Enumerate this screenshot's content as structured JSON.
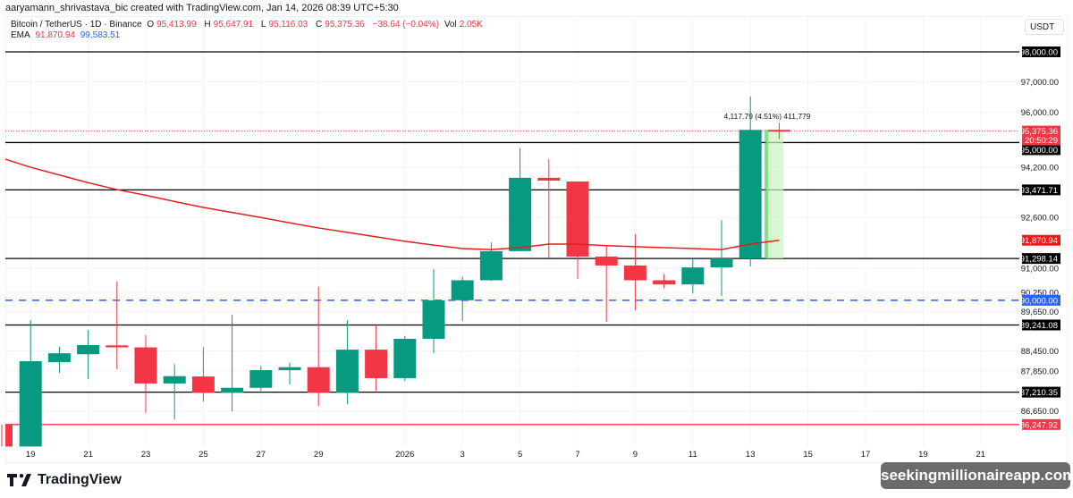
{
  "credit": "aaryamann_shrivastava_bic created with TradingView.com, Jan 14, 2026 08:39 UTC+5:30",
  "legend": {
    "symbol": "Bitcoin / TetherUS · 1D · Binance",
    "o_label": "O",
    "o": "95,413.99",
    "h_label": "H",
    "h": "95,647.91",
    "l_label": "L",
    "l": "95,116.03",
    "c_label": "C",
    "c": "95,375.36",
    "change": "−38.64 (−0.04%)",
    "vol_label": "Vol",
    "vol": "2.05K",
    "ema_label": "EMA",
    "ema1": "91,870.94",
    "ema2": "99,583.51"
  },
  "currency": "USDT",
  "colors": {
    "up": "#089981",
    "down": "#f23645",
    "ema": "#e0211f",
    "dashed": "#2962ff",
    "level": "#000000",
    "support_red": "#f23645",
    "range_fill": "#c8f5c0"
  },
  "chart_data": {
    "type": "candlestick",
    "scale": "log",
    "ylim": [
      85600,
      98400
    ],
    "y_ticks": [
      "97,000.00",
      "96,000.00",
      "94,200.00",
      "92,600.00",
      "91,000.00",
      "90,250.00",
      "89,650.00",
      "88,450.00",
      "87,850.00",
      "86,650.00"
    ],
    "x_ticks": [
      {
        "date": "Dec 19",
        "label": "19"
      },
      {
        "date": "Dec 21",
        "label": "21"
      },
      {
        "date": "Dec 23",
        "label": "23"
      },
      {
        "date": "Dec 25",
        "label": "25"
      },
      {
        "date": "Dec 27",
        "label": "27"
      },
      {
        "date": "Dec 29",
        "label": "29"
      },
      {
        "date": "Jan 1",
        "label": "2026"
      },
      {
        "date": "Jan 3",
        "label": "3"
      },
      {
        "date": "Jan 5",
        "label": "5"
      },
      {
        "date": "Jan 7",
        "label": "7"
      },
      {
        "date": "Jan 9",
        "label": "9"
      },
      {
        "date": "Jan 11",
        "label": "11"
      },
      {
        "date": "Jan 13",
        "label": "13"
      },
      {
        "date": "Jan 15",
        "label": "15"
      },
      {
        "date": "Jan 17",
        "label": "17"
      },
      {
        "date": "Jan 19",
        "label": "19"
      },
      {
        "date": "Jan 21",
        "label": "21"
      }
    ],
    "dates": [
      "Dec 18",
      "Dec 19",
      "Dec 20",
      "Dec 21",
      "Dec 22",
      "Dec 23",
      "Dec 24",
      "Dec 25",
      "Dec 26",
      "Dec 27",
      "Dec 28",
      "Dec 29",
      "Dec 30",
      "Dec 31",
      "Jan 1",
      "Jan 2",
      "Jan 3",
      "Jan 4",
      "Jan 5",
      "Jan 6",
      "Jan 7",
      "Jan 8",
      "Jan 9",
      "Jan 10",
      "Jan 11",
      "Jan 12",
      "Jan 13",
      "Jan 14",
      "Jan 15",
      "Jan 16",
      "Jan 17",
      "Jan 18",
      "Jan 19",
      "Jan 20",
      "Jan 21"
    ],
    "candles": [
      {
        "o": 86248,
        "h": 86248,
        "l": 85600,
        "c": 85600
      },
      {
        "o": 85600,
        "h": 89390,
        "l": 85600,
        "c": 88140
      },
      {
        "o": 88110,
        "h": 88580,
        "l": 87790,
        "c": 88380
      },
      {
        "o": 88350,
        "h": 89090,
        "l": 87600,
        "c": 88630
      },
      {
        "o": 88620,
        "h": 90580,
        "l": 87900,
        "c": 88560
      },
      {
        "o": 88560,
        "h": 88930,
        "l": 86590,
        "c": 87470
      },
      {
        "o": 87470,
        "h": 88050,
        "l": 86400,
        "c": 87690
      },
      {
        "o": 87680,
        "h": 88560,
        "l": 86930,
        "c": 87200
      },
      {
        "o": 87200,
        "h": 89560,
        "l": 86640,
        "c": 87340
      },
      {
        "o": 87340,
        "h": 88000,
        "l": 87250,
        "c": 87870
      },
      {
        "o": 87870,
        "h": 88100,
        "l": 87440,
        "c": 87960
      },
      {
        "o": 87960,
        "h": 90420,
        "l": 86800,
        "c": 87200
      },
      {
        "o": 87200,
        "h": 89390,
        "l": 86850,
        "c": 88490
      },
      {
        "o": 88490,
        "h": 89220,
        "l": 87240,
        "c": 87630
      },
      {
        "o": 87630,
        "h": 88900,
        "l": 87550,
        "c": 88820
      },
      {
        "o": 88820,
        "h": 90970,
        "l": 88380,
        "c": 90000
      },
      {
        "o": 90000,
        "h": 90730,
        "l": 89360,
        "c": 90620
      },
      {
        "o": 90620,
        "h": 91800,
        "l": 90600,
        "c": 91530
      },
      {
        "o": 91530,
        "h": 94810,
        "l": 91530,
        "c": 93860
      },
      {
        "o": 93860,
        "h": 94460,
        "l": 91300,
        "c": 93770
      },
      {
        "o": 93740,
        "h": 93740,
        "l": 90660,
        "c": 91360
      },
      {
        "o": 91360,
        "h": 91700,
        "l": 89340,
        "c": 91080
      },
      {
        "o": 91080,
        "h": 92060,
        "l": 89690,
        "c": 90620
      },
      {
        "o": 90620,
        "h": 90820,
        "l": 90370,
        "c": 90490
      },
      {
        "o": 90490,
        "h": 91300,
        "l": 90210,
        "c": 91020
      },
      {
        "o": 91020,
        "h": 92510,
        "l": 90130,
        "c": 91300
      },
      {
        "o": 91300,
        "h": 96510,
        "l": 91050,
        "c": 95413.99
      },
      {
        "o": 95413.99,
        "h": 95647.91,
        "l": 95116.03,
        "c": 95375.36
      }
    ],
    "ema": [
      94460,
      94200,
      93950,
      93700,
      93480,
      93300,
      93100,
      92910,
      92750,
      92590,
      92420,
      92260,
      92120,
      91980,
      91840,
      91720,
      91610,
      91580,
      91640,
      91750,
      91750,
      91700,
      91670,
      91640,
      91610,
      91580,
      91750,
      91870.94
    ],
    "levels": [
      {
        "value": 98000,
        "label": "98,000.00",
        "style": "solid",
        "color": "#000000"
      },
      {
        "value": 95000,
        "label": "95,000.00",
        "style": "solid",
        "color": "#000000"
      },
      {
        "value": 93471.71,
        "label": "93,471.71",
        "style": "solid",
        "color": "#000000"
      },
      {
        "value": 91298.14,
        "label": "91,298.14",
        "style": "solid",
        "color": "#000000"
      },
      {
        "value": 90000,
        "label": "90,000.00",
        "style": "dashed",
        "color": "#2962ff"
      },
      {
        "value": 89241.08,
        "label": "89,241.08",
        "style": "solid",
        "color": "#000000"
      },
      {
        "value": 87210.35,
        "label": "87,210.35",
        "style": "solid",
        "color": "#000000"
      },
      {
        "value": 86247.92,
        "label": "86,247.92",
        "style": "solid",
        "color": "#f23645"
      }
    ],
    "last_price": {
      "value": 95375.36,
      "label": "95,375.36",
      "countdown": "20:50:29"
    },
    "ema_label": {
      "value": 91870.94,
      "label": "91,870.94"
    },
    "range_tool": {
      "from": 91298.14,
      "to": 95415.93,
      "label": "4,117.79 (4.51%) 411,779"
    }
  },
  "footer": {
    "brand": "TradingView",
    "watermark": "seekingmillionaireapp.com"
  }
}
